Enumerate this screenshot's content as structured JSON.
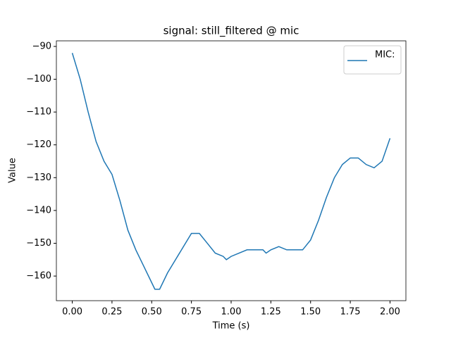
{
  "chart_data": {
    "type": "line",
    "title": "signal: still_filtered @ mic",
    "x_label": "Time (s)",
    "y_label": "Value",
    "x": [
      0,
      0.05,
      0.1,
      0.15,
      0.2,
      0.25,
      0.3,
      0.35,
      0.4,
      0.45,
      0.5,
      0.52,
      0.55,
      0.6,
      0.65,
      0.7,
      0.75,
      0.8,
      0.85,
      0.9,
      0.95,
      0.97,
      1.0,
      1.05,
      1.1,
      1.2,
      1.22,
      1.25,
      1.3,
      1.35,
      1.45,
      1.5,
      1.55,
      1.6,
      1.65,
      1.7,
      1.75,
      1.8,
      1.85,
      1.9,
      1.95,
      2.0
    ],
    "series": [
      {
        "name": "MIC:",
        "color": "#1f77b4",
        "values": [
          -92,
          -100,
          -110,
          -119,
          -125,
          -129,
          -137,
          -146,
          -152,
          -157,
          -162,
          -164,
          -164,
          -159,
          -155,
          -151,
          -147,
          -147,
          -150,
          -153,
          -154,
          -155,
          -154,
          -153,
          -152,
          -152,
          -153,
          -152,
          -151,
          -152,
          -152,
          -149,
          -143,
          -136,
          -130,
          -126,
          -124,
          -124,
          -126,
          -127,
          -125,
          -118
        ]
      }
    ],
    "xlim": [
      -0.1,
      2.1
    ],
    "ylim": [
      -167.5,
      -88.3
    ],
    "xticks": [
      {
        "value": 0,
        "label": "0.00"
      },
      {
        "value": 0.25,
        "label": "0.25"
      },
      {
        "value": 0.5,
        "label": "0.50"
      },
      {
        "value": 0.75,
        "label": "0.75"
      },
      {
        "value": 1,
        "label": "1.00"
      },
      {
        "value": 1.25,
        "label": "1.25"
      },
      {
        "value": 1.5,
        "label": "1.50"
      },
      {
        "value": 1.75,
        "label": "1.75"
      },
      {
        "value": 2,
        "label": "2.00"
      }
    ],
    "yticks": [
      {
        "value": -160,
        "label": "−160"
      },
      {
        "value": -150,
        "label": "−150"
      },
      {
        "value": -140,
        "label": "−140"
      },
      {
        "value": -130,
        "label": "−130"
      },
      {
        "value": -120,
        "label": "−120"
      },
      {
        "value": -110,
        "label": "−110"
      },
      {
        "value": -100,
        "label": "−100"
      },
      {
        "value": -90,
        "label": "−90"
      }
    ],
    "legend": "upper right"
  }
}
